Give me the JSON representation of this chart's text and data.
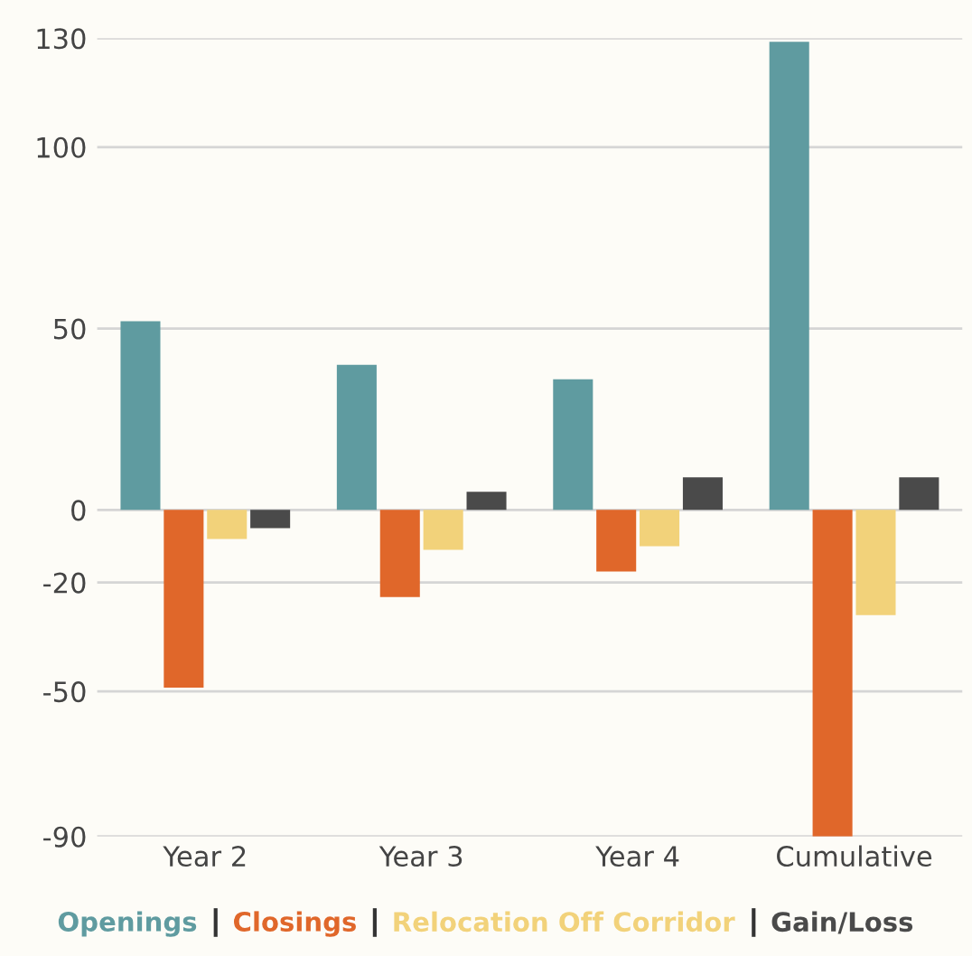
{
  "chart_data": {
    "type": "bar",
    "categories": [
      "Year 2",
      "Year 3",
      "Year 4",
      "Cumulative"
    ],
    "series": [
      {
        "name": "Openings",
        "color": "#5f9ba0",
        "values": [
          52,
          40,
          36,
          129
        ]
      },
      {
        "name": "Closings",
        "color": "#e0672a",
        "values": [
          -49,
          -24,
          -17,
          -90
        ]
      },
      {
        "name": "Relocation Off Corridor",
        "color": "#f2d27a",
        "values": [
          -8,
          -11,
          -10,
          -29
        ]
      },
      {
        "name": "Gain/Loss",
        "color": "#4a4a4a",
        "values": [
          -5,
          5,
          9,
          9
        ]
      }
    ],
    "ylim": [
      -90,
      130
    ],
    "yticks": [
      -90,
      -50,
      -20,
      0,
      50,
      100,
      130
    ],
    "grid": "y",
    "legend": "bottom"
  }
}
